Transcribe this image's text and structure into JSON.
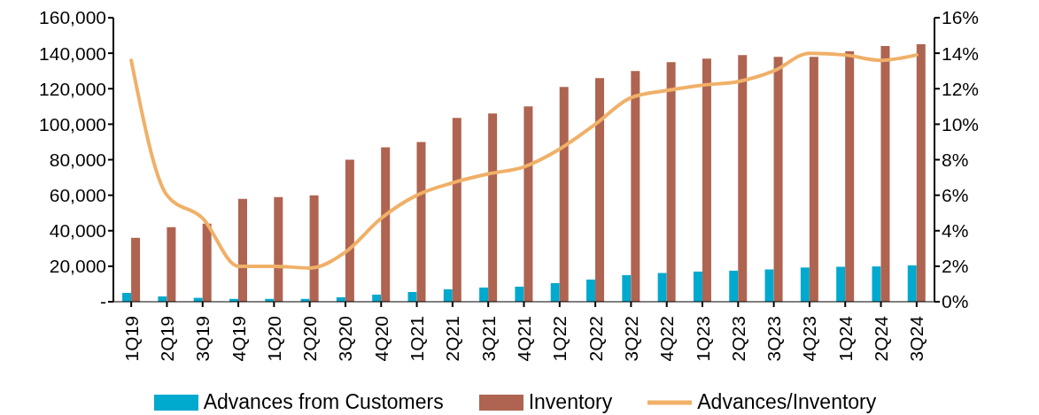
{
  "chart_data": {
    "type": "bar",
    "categories": [
      "1Q19",
      "2Q19",
      "3Q19",
      "4Q19",
      "1Q20",
      "2Q20",
      "3Q20",
      "4Q20",
      "1Q21",
      "2Q21",
      "3Q21",
      "4Q21",
      "1Q22",
      "2Q22",
      "3Q22",
      "4Q22",
      "1Q23",
      "2Q23",
      "3Q23",
      "4Q23",
      "1Q24",
      "2Q24",
      "3Q24"
    ],
    "series": [
      {
        "name": "Advances from Customers",
        "color": "#00a9ce",
        "values": [
          5000,
          3000,
          2200,
          1600,
          1600,
          1600,
          2500,
          4000,
          5500,
          7000,
          8000,
          8500,
          10500,
          12500,
          15000,
          16200,
          17000,
          17500,
          18200,
          19300,
          19700,
          19900,
          20500
        ]
      },
      {
        "name": "Inventory",
        "color": "#ae6450",
        "values": [
          36000,
          42000,
          44000,
          58000,
          59000,
          60000,
          80000,
          87000,
          90000,
          103500,
          106000,
          110000,
          121000,
          126000,
          130000,
          135000,
          137000,
          139000,
          138000,
          138000,
          141000,
          144000,
          145000
        ]
      },
      {
        "name": "Advances/Inventory",
        "type": "line",
        "axis": "y2",
        "color": "#f0b068",
        "values": [
          13.6,
          6.0,
          4.7,
          2.0,
          2.0,
          1.9,
          2.8,
          4.7,
          6.0,
          6.7,
          7.2,
          7.6,
          8.6,
          10.0,
          11.5,
          11.9,
          12.2,
          12.4,
          13.0,
          14.0,
          13.9,
          13.6,
          13.9
        ]
      }
    ],
    "ylim": [
      0,
      160000
    ],
    "yticks": [
      {
        "value": 0,
        "label": "-"
      },
      {
        "value": 20000,
        "label": "20,000"
      },
      {
        "value": 40000,
        "label": "40,000"
      },
      {
        "value": 60000,
        "label": "60,000"
      },
      {
        "value": 80000,
        "label": "80,000"
      },
      {
        "value": 100000,
        "label": "100,000"
      },
      {
        "value": 120000,
        "label": "120,000"
      },
      {
        "value": 140000,
        "label": "140,000"
      },
      {
        "value": 160000,
        "label": "160,000"
      }
    ],
    "y2lim": [
      0,
      16
    ],
    "y2ticks": [
      {
        "value": 0,
        "label": "0%"
      },
      {
        "value": 2,
        "label": "2%"
      },
      {
        "value": 4,
        "label": "4%"
      },
      {
        "value": 6,
        "label": "6%"
      },
      {
        "value": 8,
        "label": "8%"
      },
      {
        "value": 10,
        "label": "10%"
      },
      {
        "value": 12,
        "label": "12%"
      },
      {
        "value": 14,
        "label": "14%"
      },
      {
        "value": 16,
        "label": "16%"
      }
    ],
    "grid": false,
    "legend": "bottom"
  }
}
